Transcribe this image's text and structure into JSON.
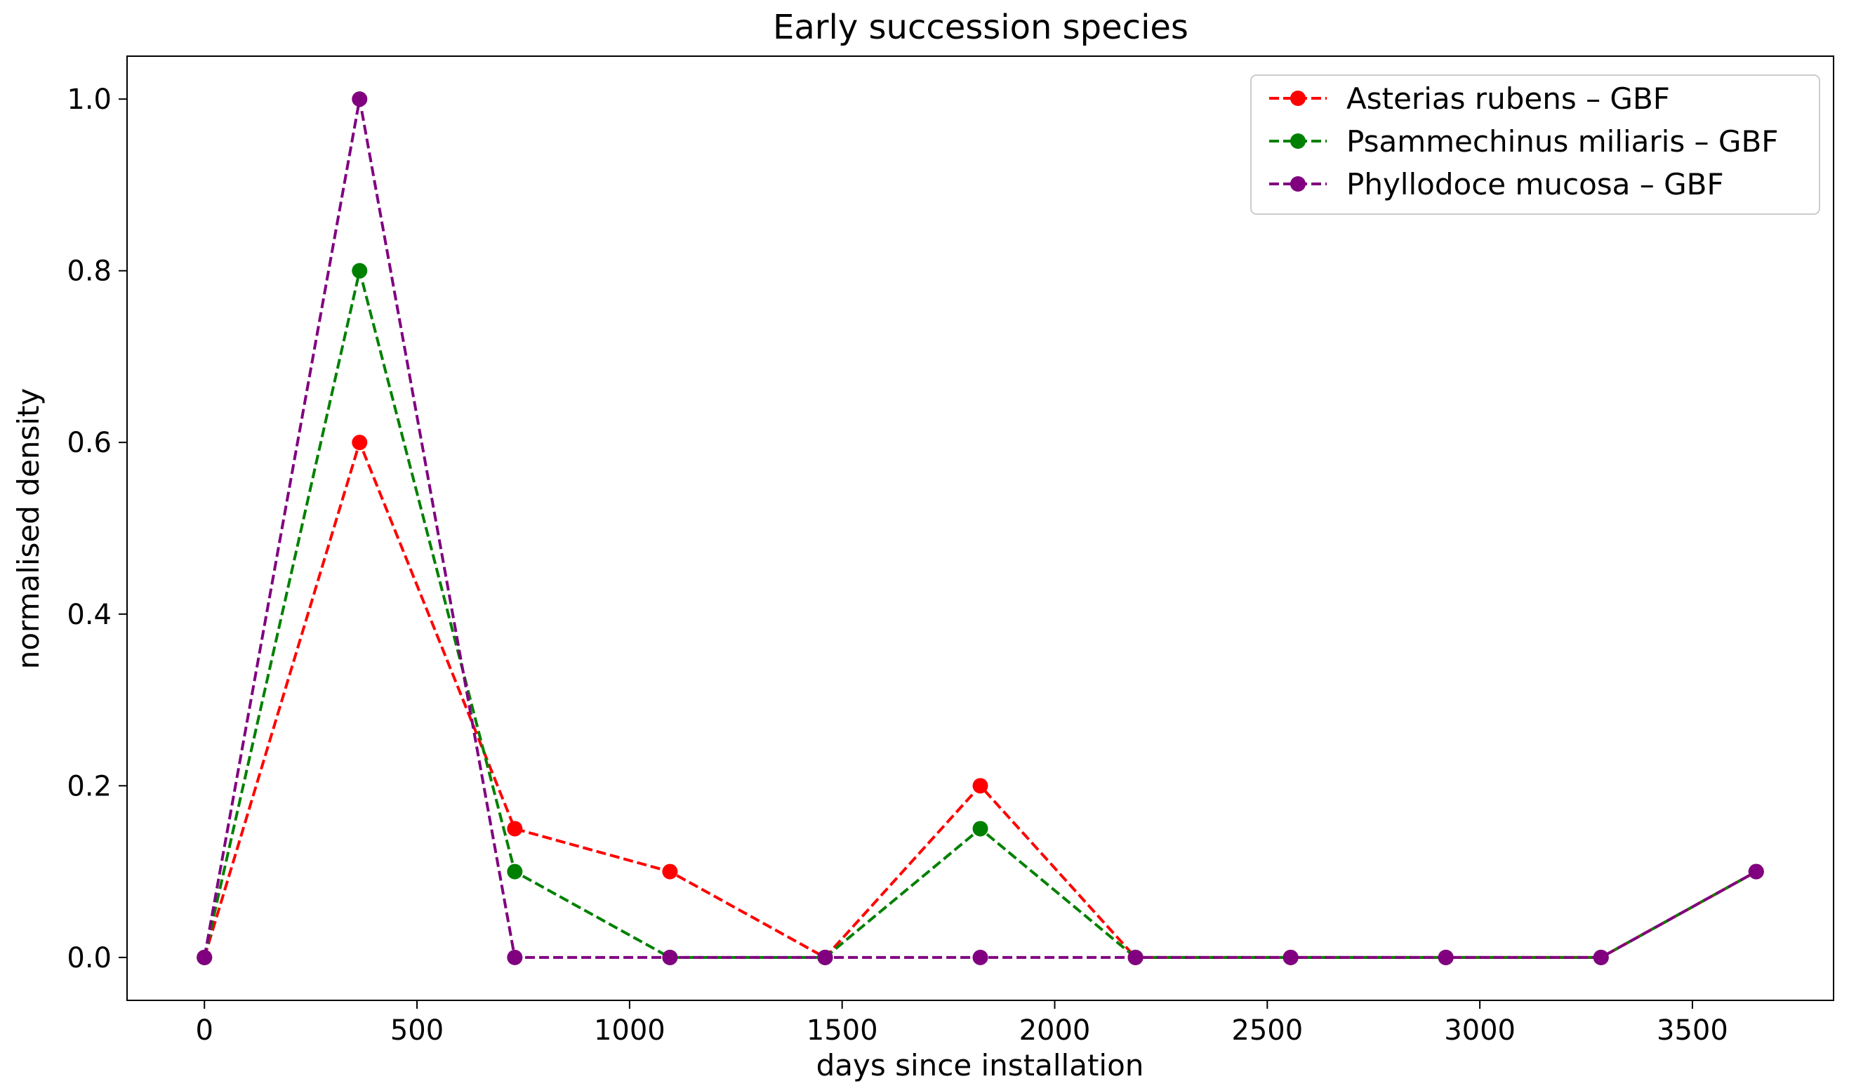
{
  "chart_data": {
    "type": "line",
    "title": "Early succession species",
    "xlabel": "days since installation",
    "ylabel": "normalised density",
    "xlim": [
      -182,
      3832
    ],
    "ylim": [
      -0.05,
      1.05
    ],
    "xticks": [
      0,
      500,
      1000,
      1500,
      2000,
      2500,
      3000,
      3500
    ],
    "xtick_labels": [
      "0",
      "500",
      "1000",
      "1500",
      "2000",
      "2500",
      "3000",
      "3500"
    ],
    "yticks": [
      0.0,
      0.2,
      0.4,
      0.6,
      0.8,
      1.0
    ],
    "ytick_labels": [
      "0.0",
      "0.2",
      "0.4",
      "0.6",
      "0.8",
      "1.0"
    ],
    "grid": false,
    "legend_position": "top-right",
    "x": [
      0,
      365,
      730,
      1095,
      1460,
      1825,
      2190,
      2555,
      2920,
      3285,
      3650
    ],
    "series": [
      {
        "name": "Asterias rubens – GBF",
        "color": "#ff0000",
        "linestyle": "dashed",
        "marker": "circle",
        "values": [
          0.0,
          0.6,
          0.15,
          0.1,
          0.0,
          0.2,
          0.0,
          0.0,
          0.0,
          0.0,
          0.1
        ]
      },
      {
        "name": "Psammechinus miliaris – GBF",
        "color": "#008000",
        "linestyle": "dashed",
        "marker": "circle",
        "values": [
          0.0,
          0.8,
          0.1,
          0.0,
          0.0,
          0.15,
          0.0,
          0.0,
          0.0,
          0.0,
          0.1
        ]
      },
      {
        "name": "Phyllodoce mucosa – GBF",
        "color": "#800080",
        "linestyle": "dashed",
        "marker": "circle",
        "values": [
          0.0,
          1.0,
          0.0,
          0.0,
          0.0,
          0.0,
          0.0,
          0.0,
          0.0,
          0.0,
          0.1
        ]
      }
    ]
  }
}
